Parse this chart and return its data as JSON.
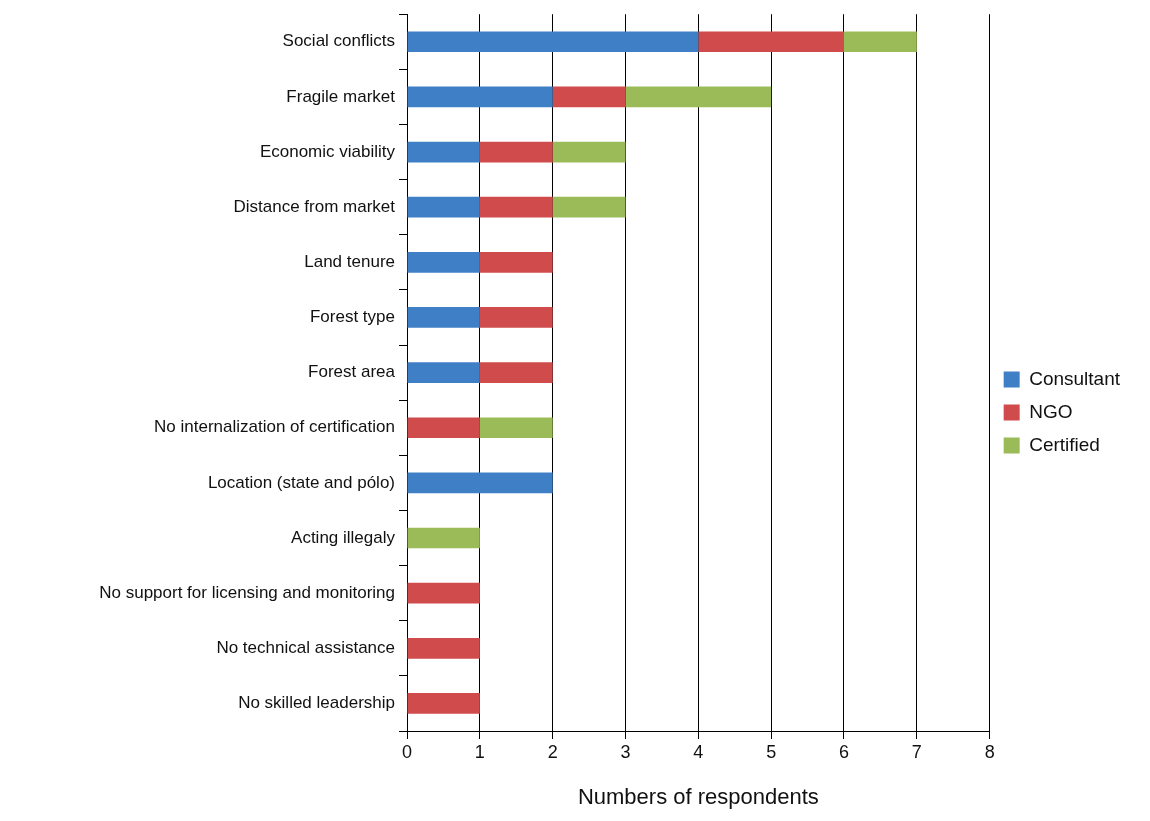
{
  "chart_data": {
    "type": "bar",
    "orientation": "horizontal",
    "stacked": true,
    "categories": [
      "Social conflicts",
      "Fragile market",
      "Economic viability",
      "Distance from market",
      "Land tenure",
      "Forest type",
      "Forest area",
      "No internalization of certification",
      "Location (state and pólo)",
      "Acting illegaly",
      "No support for licensing and monitoring",
      "No technical assistance",
      "No skilled leadership"
    ],
    "series": [
      {
        "name": "Consultant",
        "color": "#3f7fc6",
        "values": [
          4,
          2,
          1,
          1,
          1,
          1,
          1,
          0,
          2,
          0,
          0,
          0,
          0
        ]
      },
      {
        "name": "NGO",
        "color": "#d04b4c",
        "values": [
          2,
          1,
          1,
          1,
          1,
          1,
          1,
          1,
          0,
          0,
          1,
          1,
          1
        ]
      },
      {
        "name": "Certified",
        "color": "#9bbb59",
        "values": [
          1,
          2,
          1,
          1,
          0,
          0,
          0,
          1,
          0,
          1,
          0,
          0,
          0
        ]
      }
    ],
    "xlim": [
      0,
      8
    ],
    "xticks": [
      0,
      1,
      2,
      3,
      4,
      5,
      6,
      7,
      8
    ],
    "xlabel": "Numbers of respondents",
    "grid": "x",
    "legend": "right"
  }
}
